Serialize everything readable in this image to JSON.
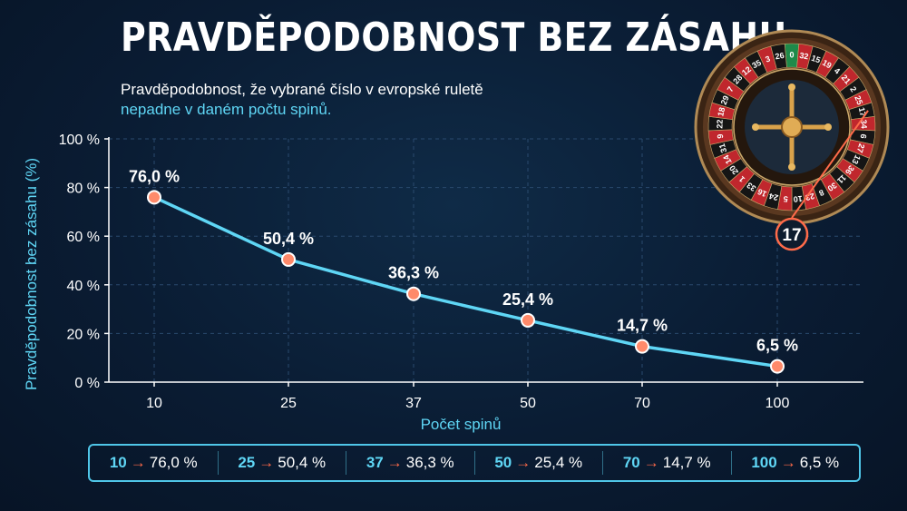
{
  "title": "PRAVDĚPODOBNOST BEZ ZÁSAHU",
  "subtitle_line1": "Pravděpodobnost, že vybrané číslo v evropské ruletě",
  "subtitle_line2": "nepadne v daném počtu spinů.",
  "colors": {
    "line": "#5fd6f5",
    "marker": "#ff8a6a",
    "arrow": "#ff6b4a",
    "wheel_red": "#c0272d",
    "wheel_black": "#151515",
    "wheel_green": "#1e8a4a"
  },
  "chart_data": {
    "type": "line",
    "title": "",
    "xlabel": "Počet spinů",
    "ylabel": "Pravděpodobnost bez zásahu (%)",
    "x": [
      10,
      25,
      37,
      50,
      70,
      100
    ],
    "x_tick_labels": [
      "10",
      "25",
      "37",
      "50",
      "70",
      "100"
    ],
    "series": [
      {
        "values": [
          76.0,
          50.4,
          36.3,
          25.4,
          14.7,
          6.5
        ]
      }
    ],
    "data_labels": [
      "76,0 %",
      "50,4 %",
      "36,3 %",
      "25,4 %",
      "14,7 %",
      "6,5 %"
    ],
    "y_ticks": [
      0,
      20,
      40,
      60,
      80,
      100
    ],
    "y_tick_labels": [
      "0 %",
      "20 %",
      "40 %",
      "60 %",
      "80 %",
      "100 %"
    ],
    "ylim": [
      0,
      100
    ],
    "grid": true
  },
  "roulette": {
    "numbers": [
      "0",
      "32",
      "15",
      "19",
      "4",
      "21",
      "2",
      "25",
      "17",
      "34",
      "6",
      "27",
      "13",
      "36",
      "11",
      "30",
      "8",
      "23",
      "10",
      "5",
      "24",
      "16",
      "33",
      "1",
      "20",
      "14",
      "31",
      "9",
      "22",
      "18",
      "29",
      "7",
      "28",
      "12",
      "35",
      "3",
      "26"
    ],
    "highlight": "17"
  },
  "summary": [
    {
      "spins": "10",
      "value": "76,0 %"
    },
    {
      "spins": "25",
      "value": "50,4 %"
    },
    {
      "spins": "37",
      "value": "36,3 %"
    },
    {
      "spins": "50",
      "value": "25,4 %"
    },
    {
      "spins": "70",
      "value": "14,7 %"
    },
    {
      "spins": "100",
      "value": "6,5 %"
    }
  ],
  "arrow_glyph": "→"
}
